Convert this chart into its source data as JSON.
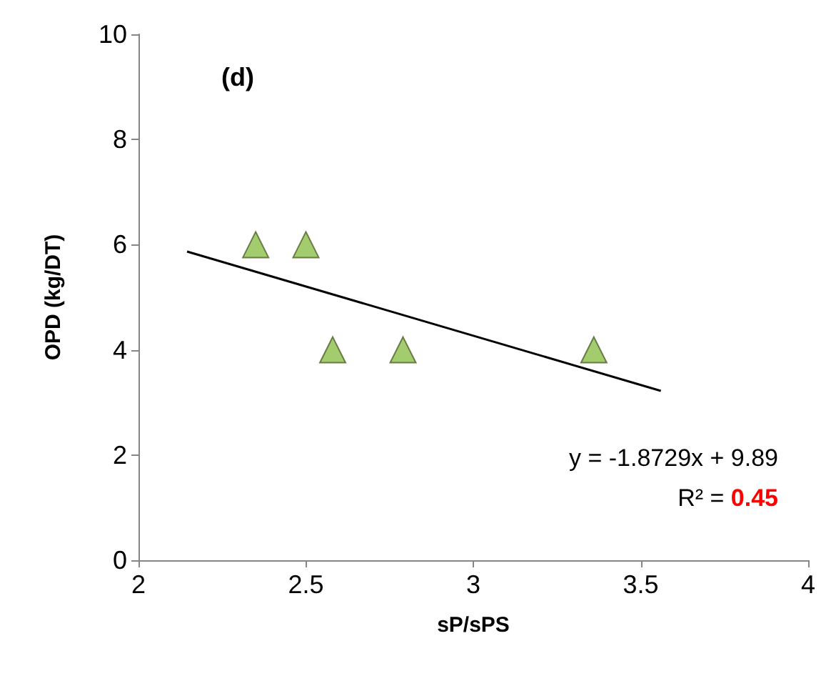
{
  "chart_data": {
    "type": "scatter",
    "title": "(d)",
    "xlabel": "sP/sPS",
    "ylabel": "OPD (kg/DT)",
    "xlim": [
      2,
      4
    ],
    "xticks": [
      2,
      2.5,
      3,
      3.5,
      4
    ],
    "ylim": [
      0,
      10
    ],
    "yticks": [
      0,
      2,
      4,
      6,
      8,
      10
    ],
    "grid": false,
    "series": [
      {
        "color": "#8cbf4a",
        "marker": "triangle",
        "x": [
          2.35,
          2.5,
          2.58,
          2.79,
          3.36
        ],
        "values": [
          6,
          6,
          4,
          4,
          4
        ]
      },
      {
        "type": "line",
        "color": "#000000",
        "marker": "none",
        "line_style": "solid",
        "x": [
          2.145,
          3.56
        ],
        "values": [
          5.87,
          3.22
        ]
      }
    ],
    "annotations": [
      "y = -1.8729x + 9.89",
      "R² = 0.45"
    ]
  }
}
